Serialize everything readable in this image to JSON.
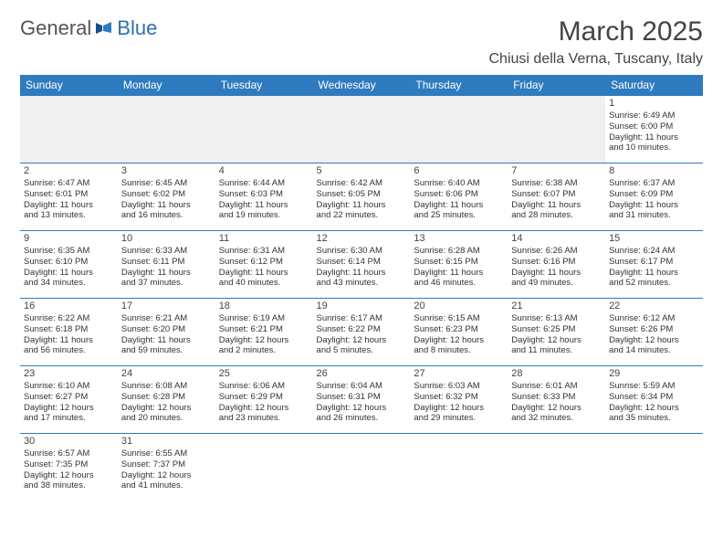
{
  "brand": {
    "part1": "General",
    "part2": "Blue"
  },
  "title": "March 2025",
  "location": "Chiusi della Verna, Tuscany, Italy",
  "colors": {
    "header_bg": "#2f7bbf",
    "header_text": "#ffffff",
    "divider": "#2f7bbf",
    "blank_bg": "#f0f0f0",
    "text": "#333333",
    "brand_blue": "#2f6fb0"
  },
  "days_header": [
    "Sunday",
    "Monday",
    "Tuesday",
    "Wednesday",
    "Thursday",
    "Friday",
    "Saturday"
  ],
  "weeks": [
    [
      null,
      null,
      null,
      null,
      null,
      null,
      {
        "n": "1",
        "sunrise": "Sunrise: 6:49 AM",
        "sunset": "Sunset: 6:00 PM",
        "daylight1": "Daylight: 11 hours",
        "daylight2": "and 10 minutes."
      }
    ],
    [
      {
        "n": "2",
        "sunrise": "Sunrise: 6:47 AM",
        "sunset": "Sunset: 6:01 PM",
        "daylight1": "Daylight: 11 hours",
        "daylight2": "and 13 minutes."
      },
      {
        "n": "3",
        "sunrise": "Sunrise: 6:45 AM",
        "sunset": "Sunset: 6:02 PM",
        "daylight1": "Daylight: 11 hours",
        "daylight2": "and 16 minutes."
      },
      {
        "n": "4",
        "sunrise": "Sunrise: 6:44 AM",
        "sunset": "Sunset: 6:03 PM",
        "daylight1": "Daylight: 11 hours",
        "daylight2": "and 19 minutes."
      },
      {
        "n": "5",
        "sunrise": "Sunrise: 6:42 AM",
        "sunset": "Sunset: 6:05 PM",
        "daylight1": "Daylight: 11 hours",
        "daylight2": "and 22 minutes."
      },
      {
        "n": "6",
        "sunrise": "Sunrise: 6:40 AM",
        "sunset": "Sunset: 6:06 PM",
        "daylight1": "Daylight: 11 hours",
        "daylight2": "and 25 minutes."
      },
      {
        "n": "7",
        "sunrise": "Sunrise: 6:38 AM",
        "sunset": "Sunset: 6:07 PM",
        "daylight1": "Daylight: 11 hours",
        "daylight2": "and 28 minutes."
      },
      {
        "n": "8",
        "sunrise": "Sunrise: 6:37 AM",
        "sunset": "Sunset: 6:09 PM",
        "daylight1": "Daylight: 11 hours",
        "daylight2": "and 31 minutes."
      }
    ],
    [
      {
        "n": "9",
        "sunrise": "Sunrise: 6:35 AM",
        "sunset": "Sunset: 6:10 PM",
        "daylight1": "Daylight: 11 hours",
        "daylight2": "and 34 minutes."
      },
      {
        "n": "10",
        "sunrise": "Sunrise: 6:33 AM",
        "sunset": "Sunset: 6:11 PM",
        "daylight1": "Daylight: 11 hours",
        "daylight2": "and 37 minutes."
      },
      {
        "n": "11",
        "sunrise": "Sunrise: 6:31 AM",
        "sunset": "Sunset: 6:12 PM",
        "daylight1": "Daylight: 11 hours",
        "daylight2": "and 40 minutes."
      },
      {
        "n": "12",
        "sunrise": "Sunrise: 6:30 AM",
        "sunset": "Sunset: 6:14 PM",
        "daylight1": "Daylight: 11 hours",
        "daylight2": "and 43 minutes."
      },
      {
        "n": "13",
        "sunrise": "Sunrise: 6:28 AM",
        "sunset": "Sunset: 6:15 PM",
        "daylight1": "Daylight: 11 hours",
        "daylight2": "and 46 minutes."
      },
      {
        "n": "14",
        "sunrise": "Sunrise: 6:26 AM",
        "sunset": "Sunset: 6:16 PM",
        "daylight1": "Daylight: 11 hours",
        "daylight2": "and 49 minutes."
      },
      {
        "n": "15",
        "sunrise": "Sunrise: 6:24 AM",
        "sunset": "Sunset: 6:17 PM",
        "daylight1": "Daylight: 11 hours",
        "daylight2": "and 52 minutes."
      }
    ],
    [
      {
        "n": "16",
        "sunrise": "Sunrise: 6:22 AM",
        "sunset": "Sunset: 6:18 PM",
        "daylight1": "Daylight: 11 hours",
        "daylight2": "and 56 minutes."
      },
      {
        "n": "17",
        "sunrise": "Sunrise: 6:21 AM",
        "sunset": "Sunset: 6:20 PM",
        "daylight1": "Daylight: 11 hours",
        "daylight2": "and 59 minutes."
      },
      {
        "n": "18",
        "sunrise": "Sunrise: 6:19 AM",
        "sunset": "Sunset: 6:21 PM",
        "daylight1": "Daylight: 12 hours",
        "daylight2": "and 2 minutes."
      },
      {
        "n": "19",
        "sunrise": "Sunrise: 6:17 AM",
        "sunset": "Sunset: 6:22 PM",
        "daylight1": "Daylight: 12 hours",
        "daylight2": "and 5 minutes."
      },
      {
        "n": "20",
        "sunrise": "Sunrise: 6:15 AM",
        "sunset": "Sunset: 6:23 PM",
        "daylight1": "Daylight: 12 hours",
        "daylight2": "and 8 minutes."
      },
      {
        "n": "21",
        "sunrise": "Sunrise: 6:13 AM",
        "sunset": "Sunset: 6:25 PM",
        "daylight1": "Daylight: 12 hours",
        "daylight2": "and 11 minutes."
      },
      {
        "n": "22",
        "sunrise": "Sunrise: 6:12 AM",
        "sunset": "Sunset: 6:26 PM",
        "daylight1": "Daylight: 12 hours",
        "daylight2": "and 14 minutes."
      }
    ],
    [
      {
        "n": "23",
        "sunrise": "Sunrise: 6:10 AM",
        "sunset": "Sunset: 6:27 PM",
        "daylight1": "Daylight: 12 hours",
        "daylight2": "and 17 minutes."
      },
      {
        "n": "24",
        "sunrise": "Sunrise: 6:08 AM",
        "sunset": "Sunset: 6:28 PM",
        "daylight1": "Daylight: 12 hours",
        "daylight2": "and 20 minutes."
      },
      {
        "n": "25",
        "sunrise": "Sunrise: 6:06 AM",
        "sunset": "Sunset: 6:29 PM",
        "daylight1": "Daylight: 12 hours",
        "daylight2": "and 23 minutes."
      },
      {
        "n": "26",
        "sunrise": "Sunrise: 6:04 AM",
        "sunset": "Sunset: 6:31 PM",
        "daylight1": "Daylight: 12 hours",
        "daylight2": "and 26 minutes."
      },
      {
        "n": "27",
        "sunrise": "Sunrise: 6:03 AM",
        "sunset": "Sunset: 6:32 PM",
        "daylight1": "Daylight: 12 hours",
        "daylight2": "and 29 minutes."
      },
      {
        "n": "28",
        "sunrise": "Sunrise: 6:01 AM",
        "sunset": "Sunset: 6:33 PM",
        "daylight1": "Daylight: 12 hours",
        "daylight2": "and 32 minutes."
      },
      {
        "n": "29",
        "sunrise": "Sunrise: 5:59 AM",
        "sunset": "Sunset: 6:34 PM",
        "daylight1": "Daylight: 12 hours",
        "daylight2": "and 35 minutes."
      }
    ],
    [
      {
        "n": "30",
        "sunrise": "Sunrise: 6:57 AM",
        "sunset": "Sunset: 7:35 PM",
        "daylight1": "Daylight: 12 hours",
        "daylight2": "and 38 minutes."
      },
      {
        "n": "31",
        "sunrise": "Sunrise: 6:55 AM",
        "sunset": "Sunset: 7:37 PM",
        "daylight1": "Daylight: 12 hours",
        "daylight2": "and 41 minutes."
      },
      null,
      null,
      null,
      null,
      null
    ]
  ]
}
